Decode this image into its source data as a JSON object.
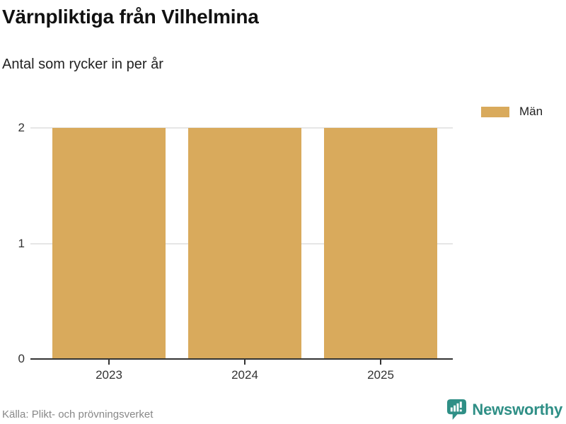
{
  "header": {
    "title": "Värnpliktiga från Vilhelmina",
    "subtitle": "Antal som rycker in per år"
  },
  "legend": {
    "items": [
      {
        "label": "Män",
        "color": "#D9AA5C"
      }
    ]
  },
  "chart_data": {
    "type": "bar",
    "title": "Värnpliktiga från Vilhelmina",
    "subtitle": "Antal som rycker in per år",
    "categories": [
      "2023",
      "2024",
      "2025"
    ],
    "series": [
      {
        "name": "Män",
        "color": "#D9AA5C",
        "values": [
          2,
          2,
          2
        ]
      }
    ],
    "xlabel": "",
    "ylabel": "",
    "ylim": [
      0,
      2
    ],
    "yticks": [
      0,
      1,
      2
    ],
    "grid": true,
    "legend_position": "top-right"
  },
  "footer": {
    "source": "Källa: Plikt- och prövningsverket",
    "brand": {
      "name": "Newsworthy",
      "color": "#2F8F86",
      "icon": "newsworthy-chart-bubble-icon"
    }
  }
}
